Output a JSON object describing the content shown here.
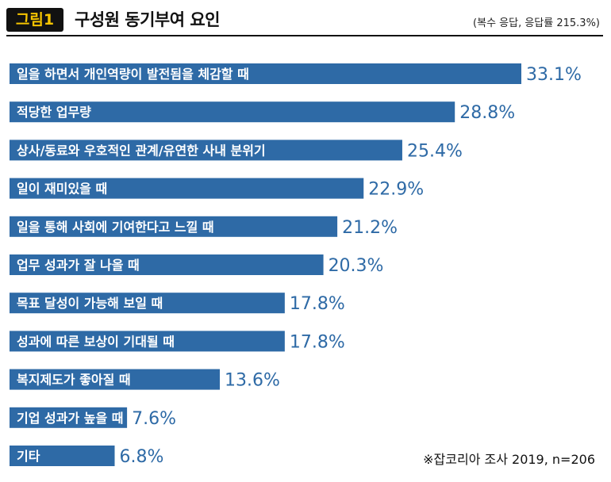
{
  "header": {
    "figure_label": "그림1",
    "title": "구성원 동기부여 요인",
    "note": "(복수 응답, 응답률 215.3%)"
  },
  "chart_data": {
    "type": "bar",
    "orientation": "horizontal",
    "title": "구성원 동기부여 요인",
    "categories": [
      "일을 하면서 개인역량이 발전됨을 체감할 때",
      "적당한 업무량",
      "상사/동료와 우호적인 관계/유연한 사내 분위기",
      "일이 재미있을 때",
      "일을 통해 사회에 기여한다고 느낄 때",
      "업무 성과가 잘 나올 때",
      "목표 달성이 가능해 보일 때",
      "성과에 따른 보상이 기대될 때",
      "복지제도가 좋아질 때",
      "기업 성과가 높을 때",
      "기타"
    ],
    "values": [
      33.1,
      28.8,
      25.4,
      22.9,
      21.2,
      20.3,
      17.8,
      17.8,
      13.6,
      7.6,
      6.8
    ],
    "value_labels": [
      "33.1%",
      "28.8%",
      "25.4%",
      "22.9%",
      "21.2%",
      "20.3%",
      "17.8%",
      "17.8%",
      "13.6%",
      "7.6%",
      "6.8%"
    ],
    "unit": "%",
    "xlim": [
      0,
      33.1
    ],
    "bar_color": "#2e6aa6",
    "label_color": "#ffffff",
    "value_color": "#2e6aa6"
  },
  "source": "※잡코리아 조사 2019, n=206"
}
